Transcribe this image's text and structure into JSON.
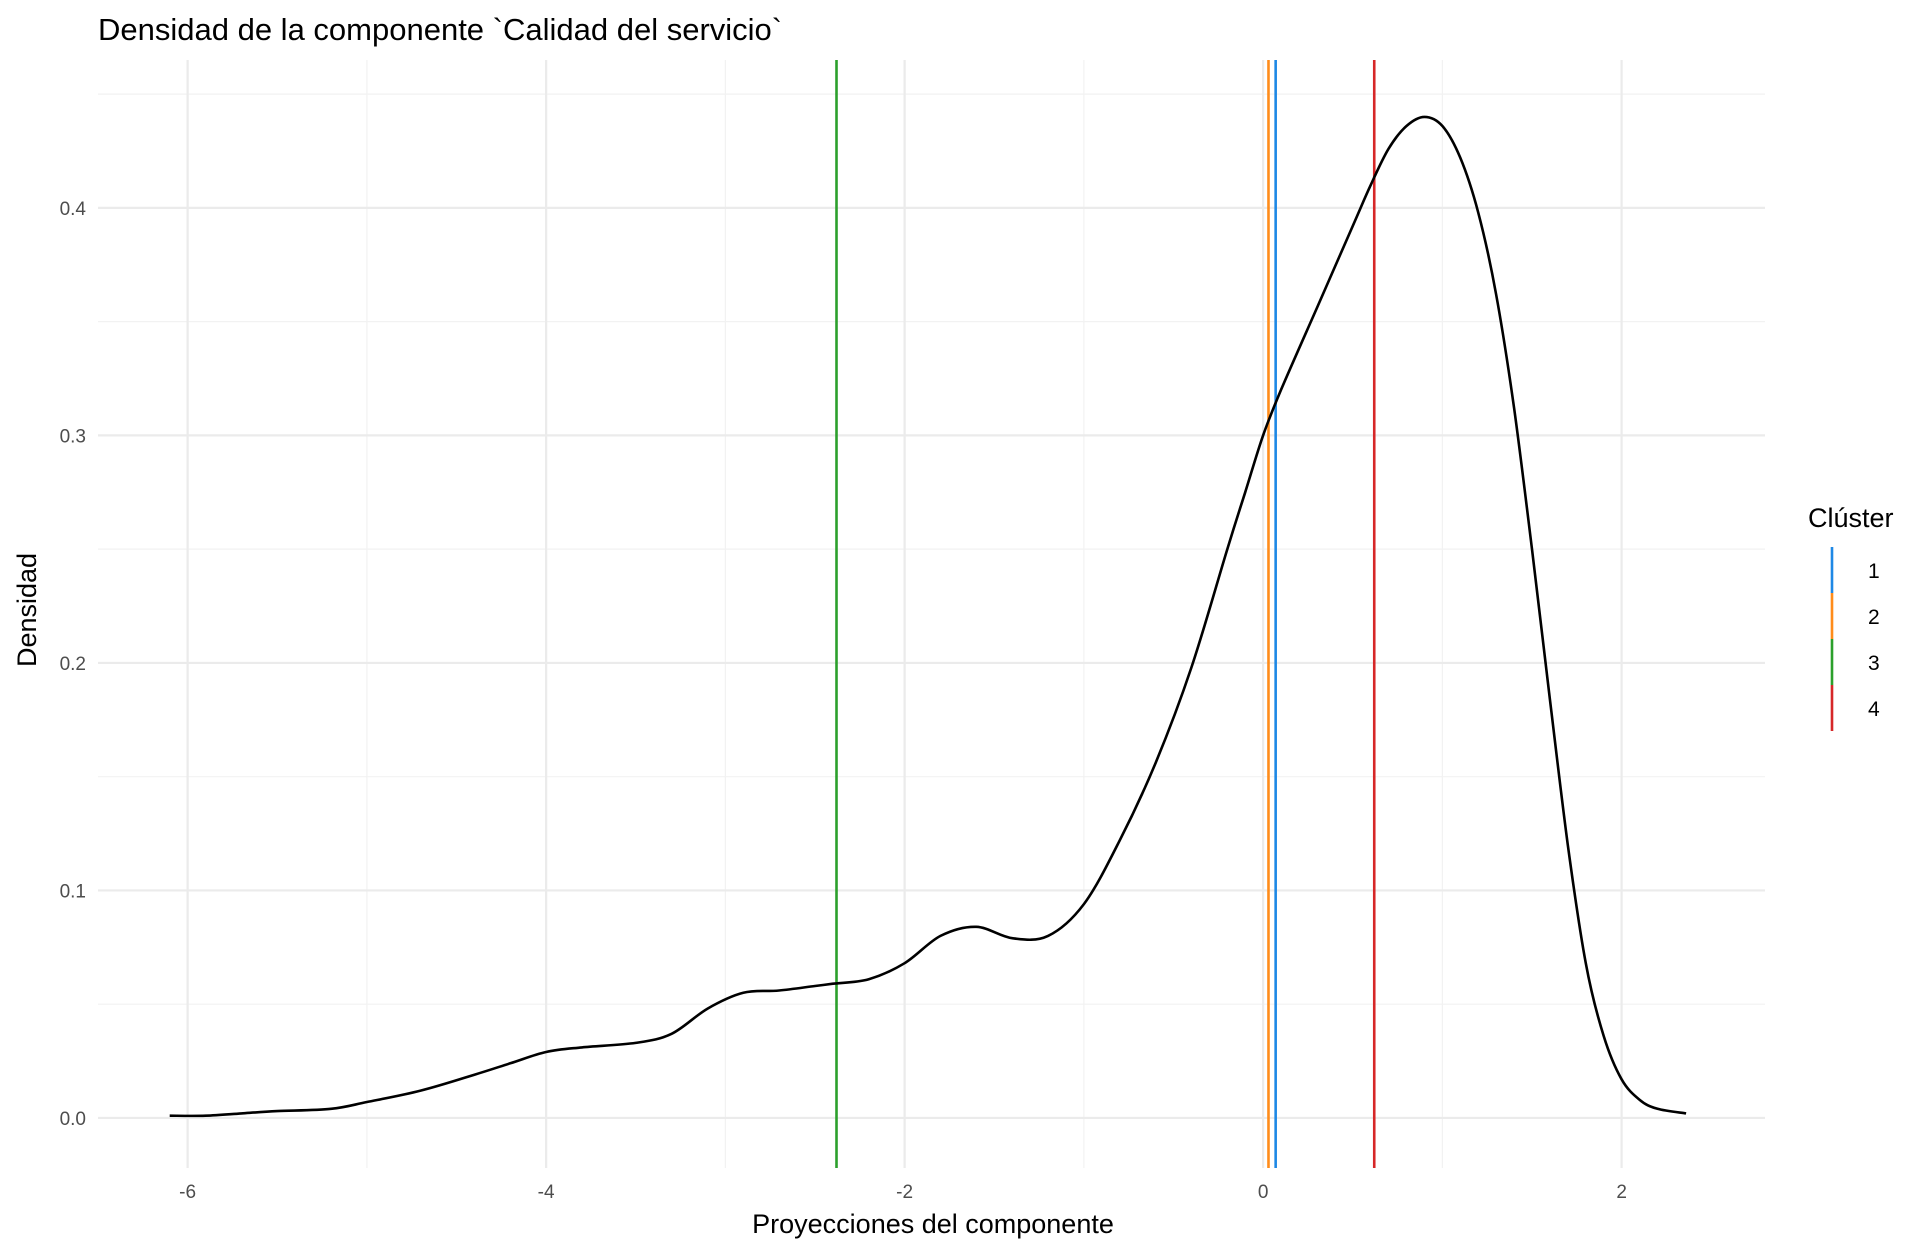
{
  "chart_data": {
    "type": "line",
    "title": "Densidad de la componente `Calidad del servicio`",
    "xlabel": "Proyecciones del componente",
    "ylabel": "Densidad",
    "xlim": [
      -6.5,
      2.8
    ],
    "ylim": [
      -0.022,
      0.465
    ],
    "x_ticks": [
      -6,
      -4,
      -2,
      0,
      2
    ],
    "x_tick_labels": [
      "-6",
      "-4",
      "-2",
      "0",
      "2"
    ],
    "y_ticks": [
      0.0,
      0.1,
      0.2,
      0.3,
      0.4
    ],
    "y_tick_labels": [
      "0.0",
      "0.1",
      "0.2",
      "0.3",
      "0.4"
    ],
    "grid": true,
    "density_curve": {
      "color": "#000000",
      "x": [
        -6.1,
        -5.9,
        -5.7,
        -5.5,
        -5.2,
        -5.0,
        -4.7,
        -4.4,
        -4.2,
        -4.0,
        -3.8,
        -3.5,
        -3.3,
        -3.1,
        -2.9,
        -2.7,
        -2.5,
        -2.4,
        -2.2,
        -2.0,
        -1.8,
        -1.6,
        -1.4,
        -1.2,
        -1.0,
        -0.8,
        -0.6,
        -0.4,
        -0.2,
        -0.1,
        0.0,
        0.1,
        0.3,
        0.5,
        0.6,
        0.7,
        0.8,
        0.9,
        1.0,
        1.1,
        1.2,
        1.3,
        1.4,
        1.5,
        1.6,
        1.7,
        1.8,
        1.9,
        2.0,
        2.1,
        2.2,
        2.36
      ],
      "y": [
        0.001,
        0.001,
        0.002,
        0.003,
        0.004,
        0.007,
        0.012,
        0.019,
        0.024,
        0.029,
        0.031,
        0.033,
        0.037,
        0.048,
        0.055,
        0.056,
        0.058,
        0.059,
        0.061,
        0.068,
        0.08,
        0.084,
        0.079,
        0.08,
        0.094,
        0.122,
        0.156,
        0.198,
        0.25,
        0.275,
        0.3,
        0.32,
        0.356,
        0.392,
        0.41,
        0.426,
        0.436,
        0.44,
        0.436,
        0.422,
        0.398,
        0.362,
        0.312,
        0.25,
        0.184,
        0.12,
        0.068,
        0.036,
        0.017,
        0.008,
        0.004,
        0.002
      ]
    },
    "vlines": [
      {
        "cluster": "1",
        "x": 0.07,
        "color": "#1e88e5"
      },
      {
        "cluster": "2",
        "x": 0.03,
        "color": "#ff8c1a"
      },
      {
        "cluster": "3",
        "x": -2.38,
        "color": "#2ca02c"
      },
      {
        "cluster": "4",
        "x": 0.62,
        "color": "#d62728"
      }
    ],
    "legend": {
      "title": "Clúster",
      "placement": "right",
      "entries": [
        {
          "label": "1",
          "color": "#1e88e5"
        },
        {
          "label": "2",
          "color": "#ff8c1a"
        },
        {
          "label": "3",
          "color": "#2ca02c"
        },
        {
          "label": "4",
          "color": "#d62728"
        }
      ]
    }
  }
}
